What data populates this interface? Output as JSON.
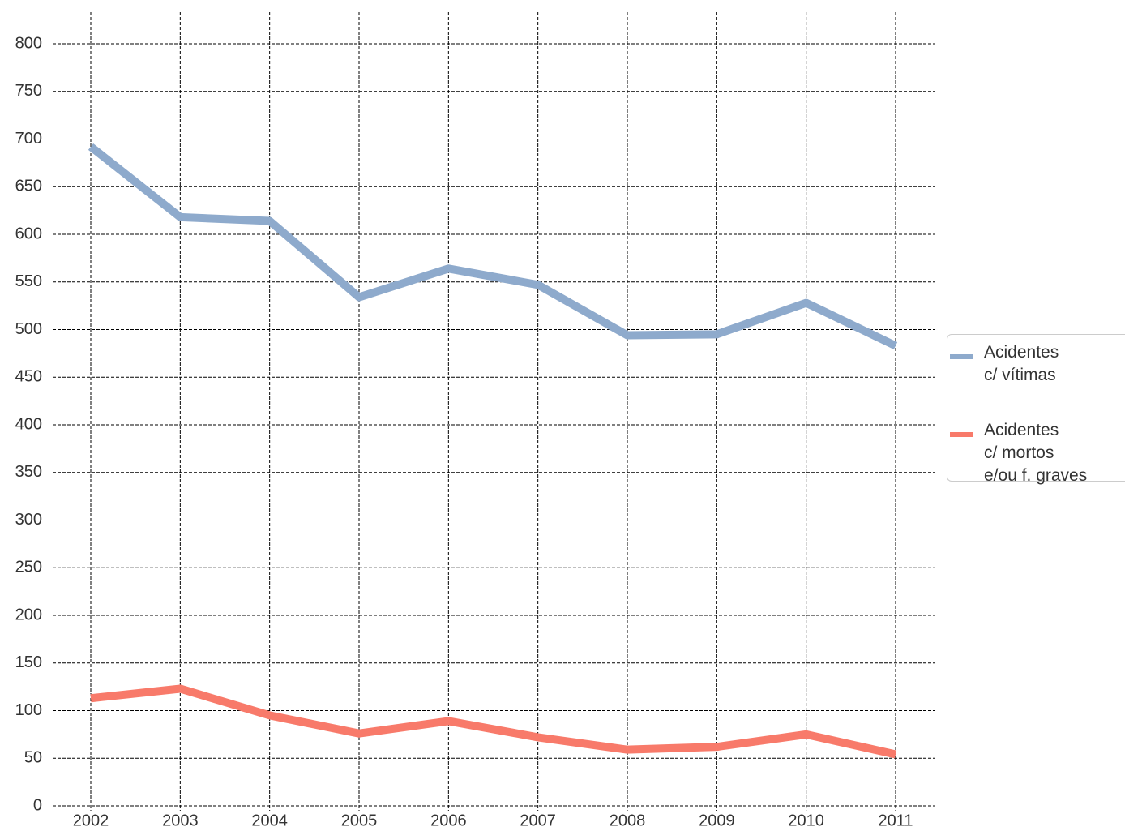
{
  "chart_data": {
    "type": "line",
    "categories": [
      "2002",
      "2003",
      "2004",
      "2005",
      "2006",
      "2007",
      "2008",
      "2009",
      "2010",
      "2011"
    ],
    "series": [
      {
        "name": "Acidentes\nc/ vítimas",
        "color": "#8eaacc",
        "values": [
          692,
          618,
          614,
          534,
          564,
          547,
          494,
          495,
          528,
          483
        ]
      },
      {
        "name": "Acidentes\nc/ mortos\ne/ou f. graves",
        "color": "#f87a6a",
        "values": [
          113,
          123,
          95,
          76,
          89,
          72,
          59,
          62,
          75,
          54
        ]
      }
    ],
    "ylim": [
      0,
      800
    ],
    "yticks": [
      0,
      50,
      100,
      150,
      200,
      250,
      300,
      350,
      400,
      450,
      500,
      550,
      600,
      650,
      700,
      750,
      800
    ],
    "grid": true,
    "legend": "right"
  }
}
